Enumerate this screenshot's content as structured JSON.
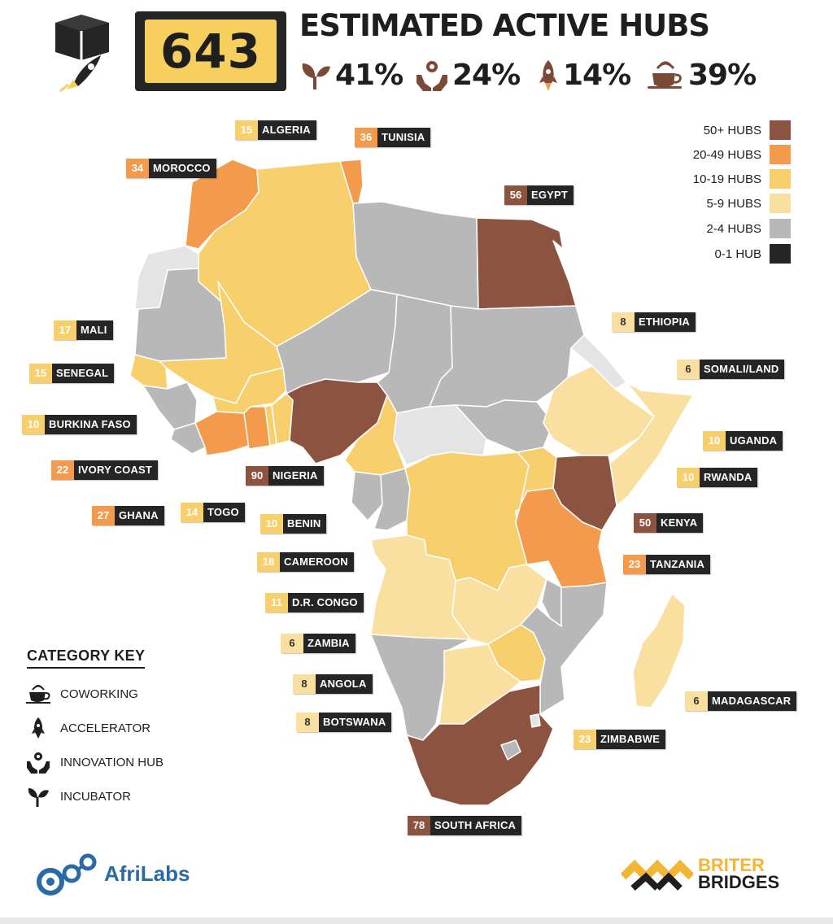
{
  "header": {
    "total": "643",
    "headline": "ESTIMATED ACTIVE HUBS",
    "stats": [
      {
        "icon": "incubator-icon",
        "value": "41%"
      },
      {
        "icon": "innovation-hub-icon",
        "value": "24%"
      },
      {
        "icon": "accelerator-icon",
        "value": "14%"
      },
      {
        "icon": "coworking-icon",
        "value": "39%"
      }
    ]
  },
  "legend": [
    {
      "label": "50+ HUBS",
      "color": "#8c5440"
    },
    {
      "label": "20-49 HUBS",
      "color": "#f39a4d"
    },
    {
      "label": "10-19 HUBS",
      "color": "#f7cf6c"
    },
    {
      "label": "5-9 HUBS",
      "color": "#f9e0a0"
    },
    {
      "label": "2-4 HUBS",
      "color": "#b8b8b8"
    },
    {
      "label": "0-1 HUB",
      "color": "#252525"
    }
  ],
  "countries": [
    {
      "name": "ALGERIA",
      "hubs": "15"
    },
    {
      "name": "TUNISIA",
      "hubs": "36"
    },
    {
      "name": "MOROCCO",
      "hubs": "34"
    },
    {
      "name": "EGYPT",
      "hubs": "56"
    },
    {
      "name": "ETHIOPIA",
      "hubs": "8"
    },
    {
      "name": "SOMALI/LAND",
      "hubs": "6"
    },
    {
      "name": "MALI",
      "hubs": "17"
    },
    {
      "name": "SENEGAL",
      "hubs": "15"
    },
    {
      "name": "BURKINA FASO",
      "hubs": "10"
    },
    {
      "name": "IVORY COAST",
      "hubs": "22"
    },
    {
      "name": "GHANA",
      "hubs": "27"
    },
    {
      "name": "TOGO",
      "hubs": "14"
    },
    {
      "name": "NIGERIA",
      "hubs": "90"
    },
    {
      "name": "BENIN",
      "hubs": "10"
    },
    {
      "name": "CAMEROON",
      "hubs": "18"
    },
    {
      "name": "D.R. CONGO",
      "hubs": "11"
    },
    {
      "name": "ZAMBIA",
      "hubs": "6"
    },
    {
      "name": "ANGOLA",
      "hubs": "8"
    },
    {
      "name": "BOTSWANA",
      "hubs": "8"
    },
    {
      "name": "UGANDA",
      "hubs": "10"
    },
    {
      "name": "RWANDA",
      "hubs": "10"
    },
    {
      "name": "KENYA",
      "hubs": "50"
    },
    {
      "name": "TANZANIA",
      "hubs": "23"
    },
    {
      "name": "MADAGASCAR",
      "hubs": "6"
    },
    {
      "name": "ZIMBABWE",
      "hubs": "23"
    },
    {
      "name": "SOUTH AFRICA",
      "hubs": "78"
    }
  ],
  "category_key": {
    "title": "CATEGORY KEY",
    "items": [
      {
        "icon": "coworking-icon",
        "label": "COWORKING"
      },
      {
        "icon": "accelerator-icon",
        "label": "ACCELERATOR"
      },
      {
        "icon": "innovation-hub-icon",
        "label": "INNOVATION HUB"
      },
      {
        "icon": "incubator-icon",
        "label": "INCUBATOR"
      }
    ]
  },
  "logos": {
    "afrilabs": "AfriLabs",
    "briter_line1": "BRITER",
    "briter_line2": "BRIDGES"
  }
}
